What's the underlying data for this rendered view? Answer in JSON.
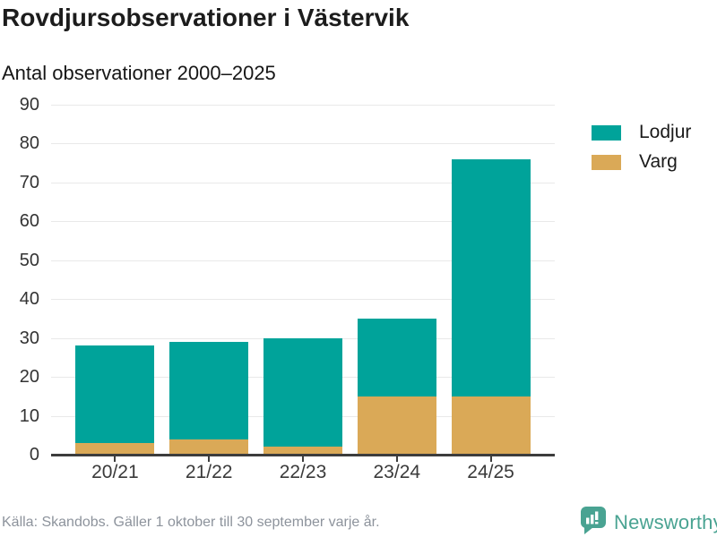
{
  "header": {
    "title": "Rovdjursobservationer i Västervik",
    "subtitle": "Antal observationer 2000–2025"
  },
  "chart_data": {
    "type": "bar",
    "stacked": true,
    "title": "Rovdjursobservationer i Västervik",
    "subtitle": "Antal observationer 2000–2025",
    "categories": [
      "20/21",
      "21/22",
      "22/23",
      "23/24",
      "24/25"
    ],
    "series": [
      {
        "name": "Lodjur",
        "color": "#00A39A",
        "values": [
          25,
          25,
          28,
          20,
          61
        ]
      },
      {
        "name": "Varg",
        "color": "#DAA957",
        "values": [
          3,
          4,
          2,
          15,
          15
        ]
      }
    ],
    "stack_totals": [
      28,
      29,
      30,
      35,
      76
    ],
    "xlabel": "",
    "ylabel": "",
    "ylim": [
      0,
      90
    ],
    "ytick_step": 10,
    "grid": true,
    "legend_position": "top-right"
  },
  "footer": {
    "source": "Källa: Skandobs. Gäller 1 oktober till 30 september varje år.",
    "brand": "Newsworthy"
  },
  "colors": {
    "lodjur": "#00A39A",
    "varg": "#DAA957",
    "brand_teal": "#49A392",
    "axis": "#3D3D3D",
    "gridline": "#E9E9E9",
    "title_text": "#1C1C1C",
    "tick_text": "#333333",
    "muted_text": "#8D939C"
  },
  "icons": {
    "brand_logo": "newsworthy-speech-bubble-bar-chart-icon"
  }
}
